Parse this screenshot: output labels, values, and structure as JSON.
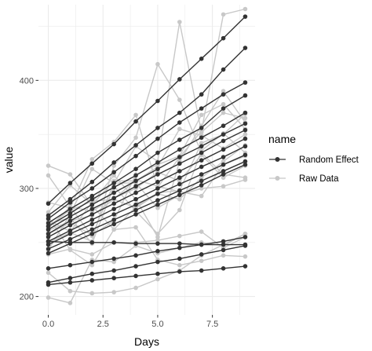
{
  "chart_data": {
    "type": "line",
    "title": "",
    "xlabel": "Days",
    "ylabel": "value",
    "xlim": [
      -0.45,
      9.45
    ],
    "ylim": [
      183,
      470
    ],
    "x_ticks": [
      0,
      2.5,
      5,
      7.5
    ],
    "x_tick_labels": [
      "0.0",
      "2.5",
      "5.0",
      "7.5"
    ],
    "y_ticks": [
      200,
      300,
      400
    ],
    "y_tick_labels": [
      "200",
      "300",
      "400"
    ],
    "grid": true,
    "panel_background": "#ffffff",
    "grid_color": "#ebebeb",
    "legend": {
      "title": "name",
      "placement": "right",
      "entries": [
        {
          "label": "Random Effect",
          "color": "#333333"
        },
        {
          "label": "Raw Data",
          "color": "#c8c8c8"
        }
      ]
    },
    "x": [
      0,
      1,
      2,
      3,
      4,
      5,
      6,
      7,
      8,
      9
    ],
    "series": [
      {
        "group": "Raw Data",
        "color": "#c8c8c8",
        "values": [
          250,
          259,
          251,
          321,
          347,
          415,
          382,
          333,
          313,
          310
        ]
      },
      {
        "group": "Raw Data",
        "color": "#c8c8c8",
        "values": [
          222,
          205,
          203,
          204,
          208,
          216,
          224,
          238,
          248,
          258
        ]
      },
      {
        "group": "Raw Data",
        "color": "#c8c8c8",
        "values": [
          199,
          194,
          234,
          232,
          247,
          240,
          245,
          250,
          247,
          258
        ]
      },
      {
        "group": "Raw Data",
        "color": "#c8c8c8",
        "values": [
          321,
          313,
          284,
          262,
          264,
          234,
          229,
          233,
          238,
          237
        ]
      },
      {
        "group": "Raw Data",
        "color": "#c8c8c8",
        "values": [
          312,
          283,
          256,
          305,
          339,
          325,
          454,
          352,
          370,
          365
        ]
      },
      {
        "group": "Raw Data",
        "color": "#c8c8c8",
        "values": [
          287,
          282,
          327,
          343,
          368,
          301,
          329,
          353,
          461,
          466
        ]
      },
      {
        "group": "Raw Data",
        "color": "#c8c8c8",
        "values": [
          267,
          273,
          249,
          302,
          279,
          258,
          280,
          335,
          351,
          333
        ]
      },
      {
        "group": "Raw Data",
        "color": "#c8c8c8",
        "values": [
          258,
          268,
          257,
          270,
          313,
          322,
          330,
          368,
          378,
          355
        ]
      },
      {
        "group": "Raw Data",
        "color": "#c8c8c8",
        "values": [
          278,
          303,
          285,
          307,
          307,
          320,
          355,
          349,
          337,
          350
        ]
      },
      {
        "group": "Raw Data",
        "color": "#c8c8c8",
        "values": [
          271,
          260,
          287,
          312,
          290,
          255,
          325,
          358,
          390,
          361
        ]
      },
      {
        "group": "Raw Data",
        "color": "#c8c8c8",
        "values": [
          263,
          283,
          279,
          291,
          300,
          315,
          307,
          331,
          310,
          321
        ]
      },
      {
        "group": "Raw Data",
        "color": "#c8c8c8",
        "values": [
          239,
          244,
          239,
          250,
          250,
          252,
          256,
          260,
          245,
          255
        ]
      },
      {
        "group": "Raw Data",
        "color": "#c8c8c8",
        "values": [
          274,
          243,
          229,
          262,
          283,
          296,
          298,
          342,
          350,
          369
        ]
      },
      {
        "group": "Raw Data",
        "color": "#c8c8c8",
        "values": [
          261,
          270,
          275,
          290,
          308,
          302,
          297,
          293,
          322,
          330
        ]
      },
      {
        "group": "Raw Data",
        "color": "#c8c8c8",
        "values": [
          265,
          280,
          288,
          290,
          282,
          295,
          290,
          310,
          325,
          340
        ]
      },
      {
        "group": "Raw Data",
        "color": "#c8c8c8",
        "values": [
          243,
          276,
          318,
          305,
          305,
          282,
          294,
          300,
          302,
          308
        ]
      },
      {
        "group": "Random Effect",
        "color": "#333333",
        "values": [
          286,
          305,
          323,
          341,
          362,
          381,
          401,
          420,
          439,
          459
        ]
      },
      {
        "group": "Random Effect",
        "color": "#333333",
        "values": [
          275,
          290,
          306,
          324,
          340,
          356,
          370,
          387,
          410,
          430
        ]
      },
      {
        "group": "Random Effect",
        "color": "#333333",
        "values": [
          272,
          287,
          300,
          315,
          330,
          346,
          361,
          374,
          387,
          398
        ]
      },
      {
        "group": "Random Effect",
        "color": "#333333",
        "values": [
          268,
          281,
          293,
          305,
          318,
          333,
          345,
          356,
          374,
          386
        ]
      },
      {
        "group": "Random Effect",
        "color": "#333333",
        "values": [
          265,
          277,
          290,
          301,
          312,
          324,
          336,
          347,
          358,
          370
        ]
      },
      {
        "group": "Random Effect",
        "color": "#333333",
        "values": [
          262,
          274,
          285,
          296,
          307,
          318,
          329,
          339,
          350,
          360
        ]
      },
      {
        "group": "Random Effect",
        "color": "#333333",
        "values": [
          258,
          270,
          281,
          291,
          302,
          313,
          323,
          333,
          344,
          354
        ]
      },
      {
        "group": "Random Effect",
        "color": "#333333",
        "values": [
          255,
          266,
          276,
          286,
          296,
          306,
          316,
          326,
          336,
          346
        ]
      },
      {
        "group": "Random Effect",
        "color": "#333333",
        "values": [
          251,
          261,
          271,
          281,
          290,
          300,
          310,
          320,
          329,
          339
        ]
      },
      {
        "group": "Random Effect",
        "color": "#333333",
        "values": [
          248,
          258,
          267,
          276,
          285,
          295,
          304,
          313,
          322,
          331
        ]
      },
      {
        "group": "Random Effect",
        "color": "#333333",
        "values": [
          244,
          253,
          262,
          271,
          280,
          289,
          298,
          307,
          316,
          325
        ]
      },
      {
        "group": "Random Effect",
        "color": "#333333",
        "values": [
          240,
          249,
          258,
          267,
          276,
          285,
          294,
          303,
          313,
          322
        ]
      },
      {
        "group": "Random Effect",
        "color": "#333333",
        "values": [
          251,
          250,
          250,
          250,
          249,
          249,
          249,
          248,
          248,
          248
        ]
      },
      {
        "group": "Random Effect",
        "color": "#333333",
        "values": [
          226,
          229,
          232,
          235,
          238,
          242,
          245,
          248,
          251,
          255
        ]
      },
      {
        "group": "Random Effect",
        "color": "#333333",
        "values": [
          213,
          217,
          221,
          224,
          228,
          232,
          235,
          239,
          243,
          247
        ]
      },
      {
        "group": "Random Effect",
        "color": "#333333",
        "values": [
          211,
          213,
          215,
          217,
          219,
          221,
          223,
          224,
          226,
          228
        ]
      }
    ]
  }
}
